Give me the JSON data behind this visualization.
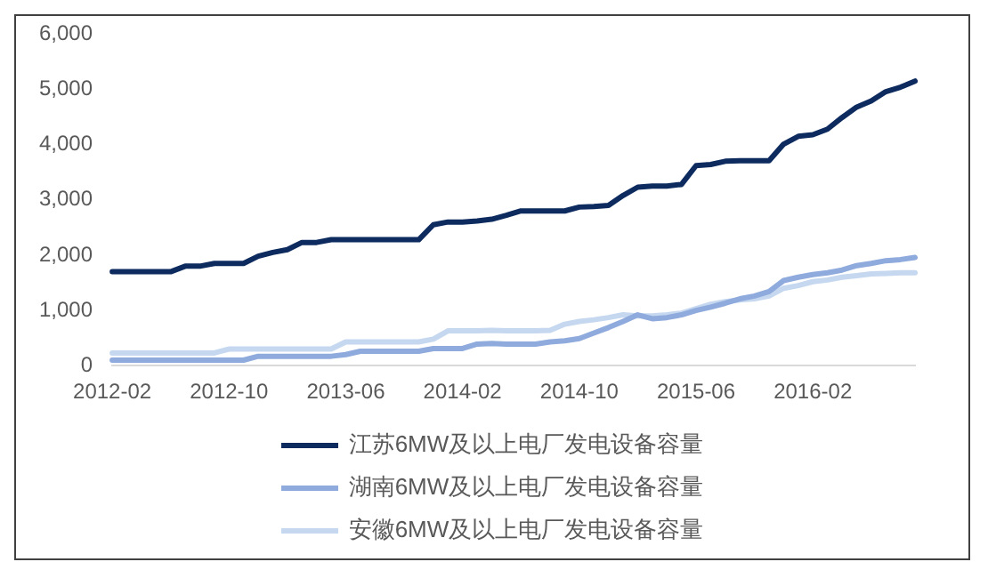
{
  "chart_data": {
    "type": "line",
    "categories": [
      "2012-02",
      null,
      null,
      null,
      null,
      null,
      null,
      null,
      "2012-10",
      null,
      null,
      null,
      null,
      null,
      null,
      null,
      "2013-06",
      null,
      null,
      null,
      null,
      null,
      null,
      null,
      "2014-02",
      null,
      null,
      null,
      null,
      null,
      null,
      null,
      "2014-10",
      null,
      null,
      null,
      null,
      null,
      null,
      null,
      "2015-06",
      null,
      null,
      null,
      null,
      null,
      null,
      null,
      "2016-02",
      null,
      null,
      null,
      null,
      null,
      null,
      null
    ],
    "series": [
      {
        "name": "江苏6MW及以上电厂发电设备容量",
        "color": "#0d2b5e",
        "values": [
          1700,
          1700,
          1700,
          1700,
          1700,
          1800,
          1800,
          1850,
          1850,
          1850,
          1980,
          2050,
          2100,
          2230,
          2230,
          2280,
          2280,
          2280,
          2280,
          2280,
          2280,
          2280,
          2550,
          2600,
          2600,
          2620,
          2650,
          2720,
          2800,
          2800,
          2800,
          2800,
          2870,
          2880,
          2900,
          3080,
          3230,
          3250,
          3250,
          3280,
          3620,
          3640,
          3700,
          3710,
          3710,
          3710,
          4010,
          4150,
          4180,
          4280,
          4490,
          4680,
          4790,
          4960,
          5040,
          5150
        ]
      },
      {
        "name": "湖南6MW及以上电厂发电设备容量",
        "color": "#8faadc",
        "values": [
          100,
          100,
          100,
          100,
          100,
          100,
          100,
          100,
          100,
          100,
          170,
          170,
          170,
          170,
          170,
          170,
          200,
          260,
          260,
          260,
          260,
          260,
          310,
          310,
          310,
          390,
          400,
          390,
          390,
          390,
          430,
          450,
          490,
          590,
          690,
          800,
          920,
          850,
          870,
          920,
          1000,
          1060,
          1130,
          1210,
          1260,
          1340,
          1540,
          1600,
          1650,
          1680,
          1730,
          1810,
          1850,
          1900,
          1920,
          1960
        ]
      },
      {
        "name": "安徽6MW及以上电厂发电设备容量",
        "color": "#c5d8ef",
        "values": [
          230,
          230,
          230,
          230,
          230,
          230,
          230,
          230,
          300,
          300,
          300,
          300,
          300,
          300,
          300,
          300,
          430,
          430,
          430,
          430,
          430,
          430,
          480,
          630,
          630,
          630,
          640,
          630,
          630,
          630,
          640,
          750,
          800,
          830,
          870,
          920,
          900,
          900,
          920,
          950,
          1030,
          1110,
          1160,
          1190,
          1210,
          1260,
          1400,
          1450,
          1520,
          1550,
          1600,
          1630,
          1660,
          1670,
          1680,
          1680
        ]
      }
    ],
    "ylim": [
      0,
      6000
    ],
    "yticks": [
      {
        "value": 0,
        "label": "0"
      },
      {
        "value": 1000,
        "label": "1,000"
      },
      {
        "value": 2000,
        "label": "2,000"
      },
      {
        "value": 3000,
        "label": "3,000"
      },
      {
        "value": 4000,
        "label": "4,000"
      },
      {
        "value": 5000,
        "label": "5,000"
      },
      {
        "value": 6000,
        "label": "6,000"
      }
    ],
    "grid": false,
    "legend": "bottom",
    "marker": "none",
    "line_style": "solid"
  }
}
